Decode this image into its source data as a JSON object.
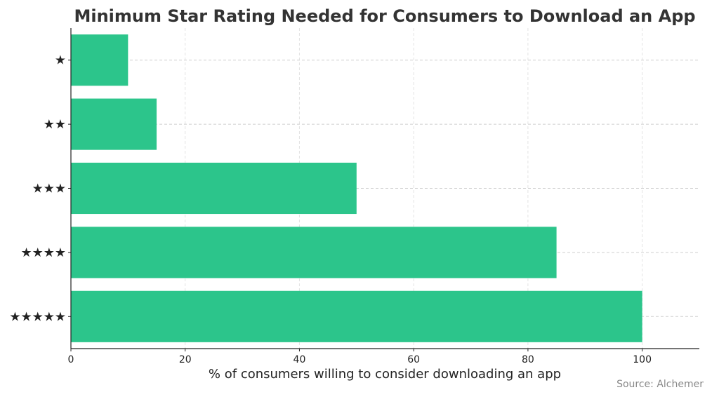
{
  "chart_data": {
    "type": "bar",
    "orientation": "horizontal",
    "title": "Minimum Star Rating Needed for Consumers to Download an App",
    "xlabel": "% of consumers willing to consider downloading an app",
    "ylabel": "",
    "categories": [
      "★",
      "★★",
      "★★★",
      "★★★★",
      "★★★★★"
    ],
    "values": [
      10,
      15,
      50,
      85,
      100
    ],
    "xlim": [
      0,
      110
    ],
    "xticks": [
      0,
      20,
      40,
      60,
      80,
      100
    ],
    "grid": true,
    "bar_color": "#2cc58b",
    "source": "Source: Alchemer"
  }
}
